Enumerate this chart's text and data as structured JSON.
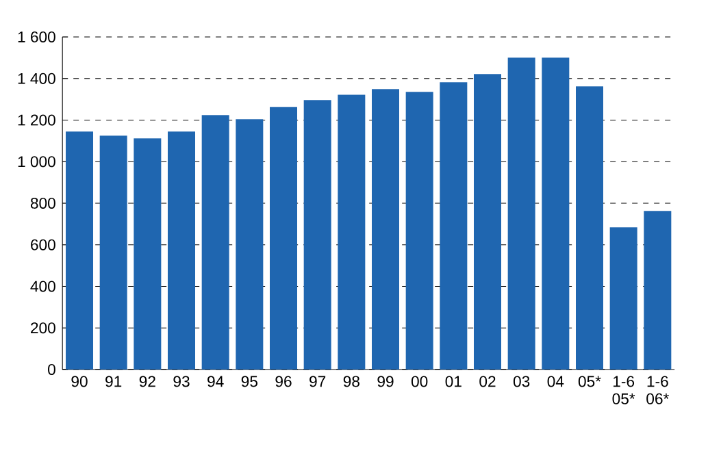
{
  "chart_data": {
    "type": "bar",
    "categories": [
      "90",
      "91",
      "92",
      "93",
      "94",
      "95",
      "96",
      "97",
      "98",
      "99",
      "00",
      "01",
      "02",
      "03",
      "04",
      "05*",
      "1-6 05*",
      "1-6 06*"
    ],
    "values": [
      1145,
      1125,
      1112,
      1145,
      1224,
      1204,
      1263,
      1296,
      1322,
      1349,
      1336,
      1382,
      1421,
      1500,
      1500,
      1362,
      684,
      763
    ],
    "color": "#1f66b0",
    "ylim": [
      0,
      1600
    ],
    "yticks": [
      0,
      {
        "value": 200,
        "label": "200"
      },
      {
        "value": 400,
        "label": "400"
      },
      {
        "value": 600,
        "label": "600"
      },
      {
        "value": 800,
        "label": "800"
      },
      {
        "value": 1000,
        "label": "1 000"
      },
      {
        "value": 1200,
        "label": "1 200"
      },
      {
        "value": 1400,
        "label": "1 400"
      },
      {
        "value": 1600,
        "label": "1 600"
      }
    ],
    "grid": "y"
  }
}
